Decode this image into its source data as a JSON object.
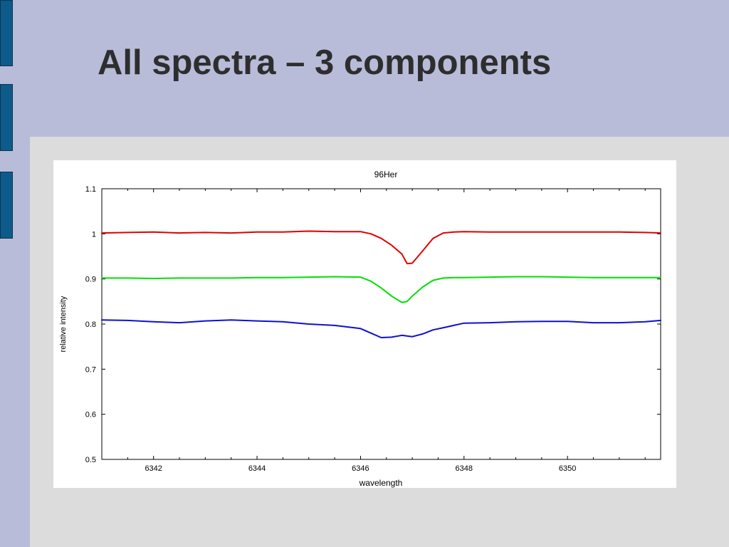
{
  "slide": {
    "title": "All spectra – 3 components"
  },
  "colors": {
    "background": "#b8bcd8",
    "panel": "#dcdcdc",
    "side_tab": "#0e5a8a",
    "title": "#2e2e2e"
  },
  "chart_data": {
    "type": "line",
    "title": "96Her",
    "xlabel": "wavelength",
    "ylabel": "relative intensity",
    "xlim": [
      6341.0,
      6351.8
    ],
    "ylim": [
      0.5,
      1.1
    ],
    "xticks": [
      6342,
      6344,
      6346,
      6348,
      6350
    ],
    "xtick_labels": [
      "6342",
      "6344",
      "6346",
      "6348",
      "6350"
    ],
    "yticks": [
      0.5,
      0.6,
      0.7,
      0.8,
      0.9,
      1.0,
      1.1
    ],
    "ytick_labels": [
      "0.5",
      "0.6",
      "0.7",
      "0.8",
      "0.9",
      "1",
      "1.1"
    ],
    "grid": false,
    "series": [
      {
        "color": "#e00000",
        "x": [
          6341.0,
          6341.5,
          6342.0,
          6342.5,
          6343.0,
          6343.5,
          6344.0,
          6344.5,
          6345.0,
          6345.5,
          6346.0,
          6346.2,
          6346.4,
          6346.6,
          6346.8,
          6346.9,
          6347.0,
          6347.2,
          6347.4,
          6347.6,
          6347.8,
          6348.0,
          6348.5,
          6349.0,
          6349.5,
          6350.0,
          6350.5,
          6351.0,
          6351.5,
          6351.8
        ],
        "y": [
          1.002,
          1.003,
          1.004,
          1.002,
          1.003,
          1.002,
          1.004,
          1.004,
          1.006,
          1.005,
          1.005,
          1.0,
          0.99,
          0.975,
          0.955,
          0.934,
          0.935,
          0.962,
          0.99,
          1.002,
          1.004,
          1.005,
          1.004,
          1.004,
          1.004,
          1.004,
          1.004,
          1.004,
          1.003,
          1.002
        ]
      },
      {
        "color": "#00e000",
        "x": [
          6341.0,
          6341.5,
          6342.0,
          6342.5,
          6343.0,
          6343.5,
          6344.0,
          6344.5,
          6345.0,
          6345.5,
          6346.0,
          6346.2,
          6346.4,
          6346.6,
          6346.8,
          6346.9,
          6347.0,
          6347.2,
          6347.4,
          6347.6,
          6347.8,
          6348.0,
          6348.5,
          6349.0,
          6349.5,
          6350.0,
          6350.5,
          6351.0,
          6351.5,
          6351.8
        ],
        "y": [
          0.902,
          0.902,
          0.901,
          0.902,
          0.902,
          0.902,
          0.903,
          0.903,
          0.904,
          0.905,
          0.904,
          0.895,
          0.88,
          0.862,
          0.848,
          0.85,
          0.862,
          0.882,
          0.897,
          0.902,
          0.903,
          0.903,
          0.904,
          0.905,
          0.905,
          0.904,
          0.903,
          0.903,
          0.903,
          0.903
        ]
      },
      {
        "color": "#1010d0",
        "x": [
          6341.0,
          6341.5,
          6342.0,
          6342.5,
          6343.0,
          6343.5,
          6344.0,
          6344.5,
          6345.0,
          6345.5,
          6346.0,
          6346.2,
          6346.4,
          6346.6,
          6346.8,
          6347.0,
          6347.2,
          6347.4,
          6347.6,
          6347.8,
          6348.0,
          6348.5,
          6349.0,
          6349.5,
          6350.0,
          6350.5,
          6351.0,
          6351.5,
          6351.8
        ],
        "y": [
          0.809,
          0.808,
          0.805,
          0.803,
          0.807,
          0.809,
          0.807,
          0.805,
          0.8,
          0.797,
          0.79,
          0.78,
          0.77,
          0.771,
          0.775,
          0.772,
          0.778,
          0.787,
          0.792,
          0.797,
          0.802,
          0.803,
          0.805,
          0.806,
          0.806,
          0.803,
          0.803,
          0.805,
          0.808
        ]
      }
    ]
  }
}
